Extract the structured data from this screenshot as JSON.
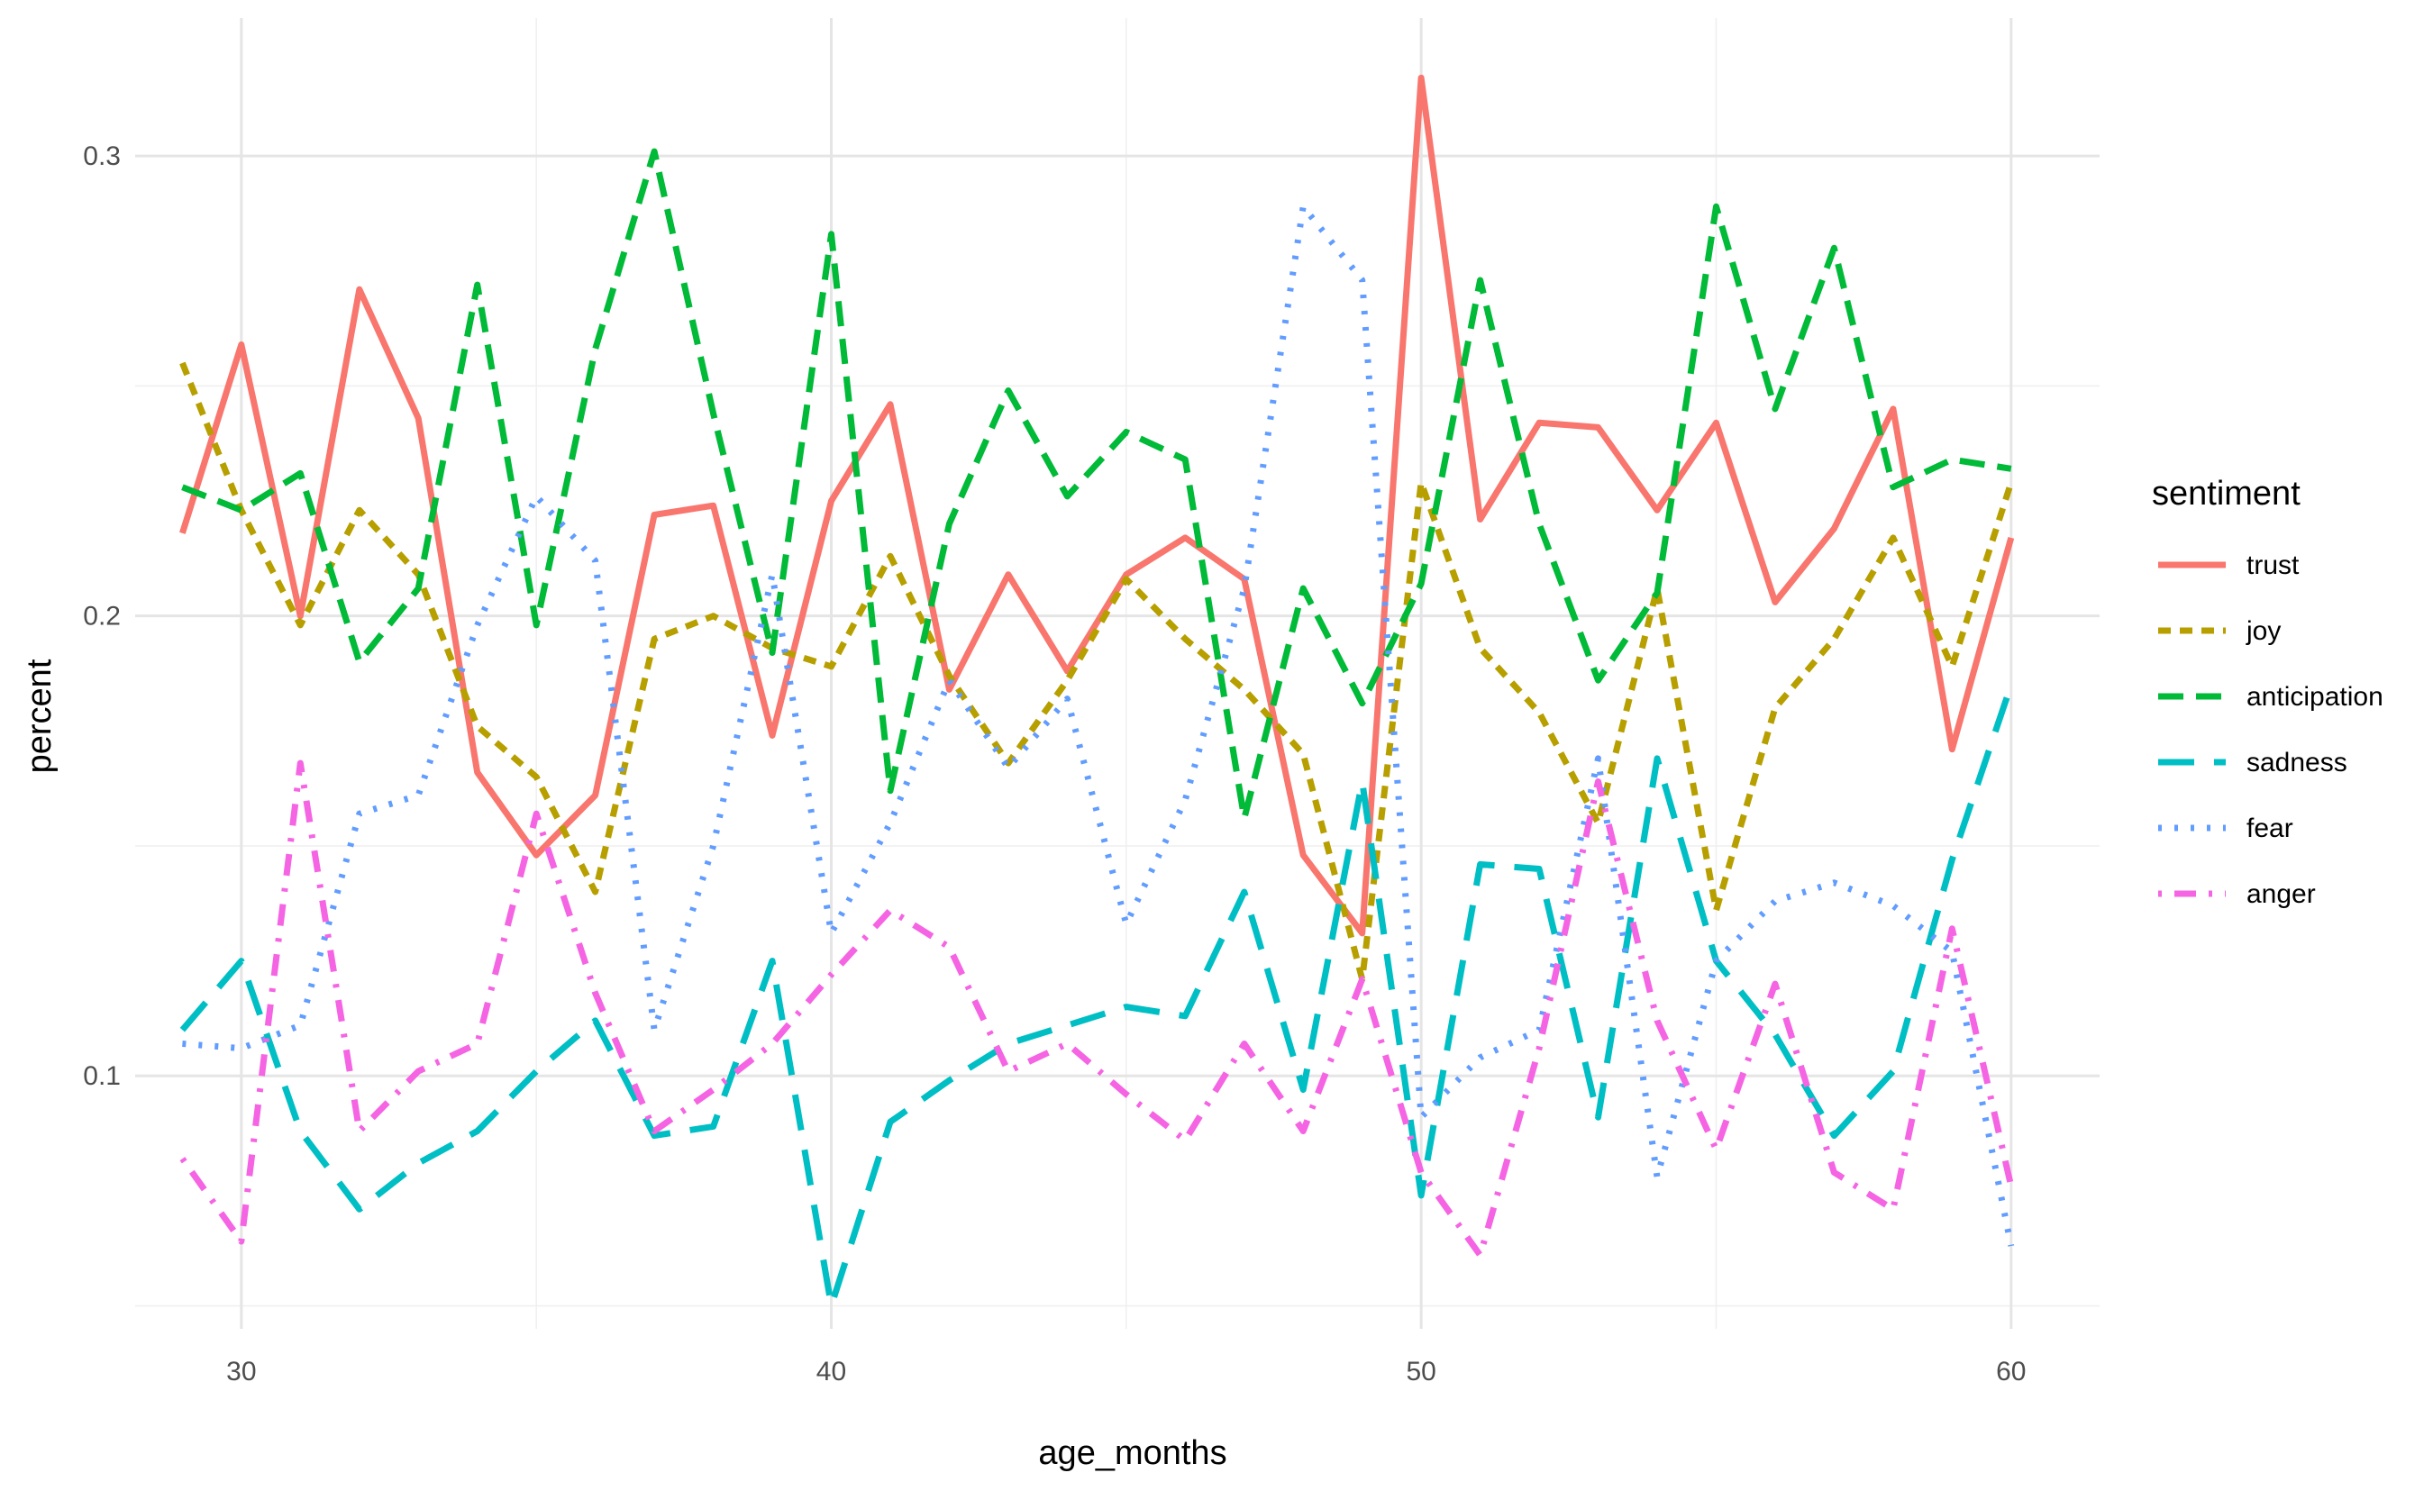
{
  "chart_data": {
    "type": "line",
    "title": "",
    "xlabel": "age_months",
    "ylabel": "percent",
    "xlim": [
      28.2,
      61.5
    ],
    "ylim": [
      0.045,
      0.33
    ],
    "x_major_ticks": [
      30,
      40,
      50,
      60
    ],
    "x_minor_ticks": [
      35,
      45,
      55
    ],
    "y_major_ticks": [
      0.1,
      0.2,
      0.3
    ],
    "y_major_labels": [
      "0.1",
      "0.2",
      "0.3"
    ],
    "y_minor_ticks": [
      0.05,
      0.15,
      0.25
    ],
    "grid": true,
    "legend": {
      "title": "sentiment",
      "position": "right"
    },
    "x": [
      29,
      30,
      31,
      32,
      33,
      34,
      35,
      36,
      37,
      38,
      39,
      40,
      41,
      42,
      43,
      44,
      45,
      46,
      47,
      48,
      49,
      50,
      51,
      52,
      53,
      54,
      55,
      56,
      57,
      58,
      59,
      60
    ],
    "series": [
      {
        "name": "trust",
        "color": "#F8766D",
        "dash": "solid",
        "values": [
          0.218,
          0.259,
          0.2,
          0.271,
          0.243,
          0.166,
          0.148,
          0.161,
          0.222,
          0.224,
          0.174,
          0.225,
          0.246,
          0.184,
          0.209,
          0.188,
          0.209,
          0.217,
          0.208,
          0.148,
          0.131,
          0.317,
          0.221,
          0.242,
          0.241,
          0.223,
          0.242,
          0.203,
          0.219,
          0.245,
          0.171,
          0.217
        ]
      },
      {
        "name": "joy",
        "color": "#B79F00",
        "dash": "dash-short",
        "values": [
          0.255,
          0.223,
          0.198,
          0.223,
          0.209,
          0.176,
          0.165,
          0.14,
          0.195,
          0.2,
          0.193,
          0.189,
          0.213,
          0.187,
          0.168,
          0.186,
          0.208,
          0.195,
          0.184,
          0.17,
          0.121,
          0.229,
          0.193,
          0.179,
          0.155,
          0.206,
          0.136,
          0.18,
          0.195,
          0.217,
          0.189,
          0.229
        ]
      },
      {
        "name": "anticipation",
        "color": "#00BA38",
        "dash": "dash-long",
        "values": [
          0.228,
          0.223,
          0.231,
          0.19,
          0.206,
          0.272,
          0.198,
          0.258,
          0.301,
          0.244,
          0.192,
          0.283,
          0.162,
          0.22,
          0.249,
          0.226,
          0.24,
          0.234,
          0.156,
          0.206,
          0.181,
          0.207,
          0.273,
          0.22,
          0.186,
          0.205,
          0.289,
          0.245,
          0.28,
          0.228,
          0.234,
          0.232
        ]
      },
      {
        "name": "sadness",
        "color": "#00BFC4",
        "dash": "longdash",
        "values": [
          0.11,
          0.125,
          0.088,
          0.071,
          0.081,
          0.088,
          0.101,
          0.112,
          0.087,
          0.089,
          0.125,
          0.05,
          0.09,
          0.099,
          0.107,
          0.111,
          0.115,
          0.113,
          0.14,
          0.097,
          0.164,
          0.074,
          0.146,
          0.145,
          0.091,
          0.169,
          0.125,
          0.109,
          0.087,
          0.101,
          0.147,
          0.185
        ]
      },
      {
        "name": "fear",
        "color": "#619CFF",
        "dash": "dotted",
        "values": [
          0.107,
          0.106,
          0.111,
          0.157,
          0.161,
          0.198,
          0.226,
          0.212,
          0.11,
          0.15,
          0.209,
          0.131,
          0.155,
          0.186,
          0.167,
          0.182,
          0.133,
          0.16,
          0.206,
          0.289,
          0.273,
          0.091,
          0.104,
          0.11,
          0.169,
          0.078,
          0.125,
          0.138,
          0.142,
          0.137,
          0.127,
          0.063
        ]
      },
      {
        "name": "anger",
        "color": "#F564E3",
        "dash": "dotdash",
        "values": [
          0.082,
          0.064,
          0.168,
          0.088,
          0.101,
          0.107,
          0.157,
          0.118,
          0.088,
          0.097,
          0.107,
          0.122,
          0.136,
          0.128,
          0.101,
          0.107,
          0.096,
          0.086,
          0.107,
          0.088,
          0.121,
          0.079,
          0.061,
          0.106,
          0.164,
          0.112,
          0.084,
          0.12,
          0.079,
          0.071,
          0.132,
          0.076
        ]
      }
    ]
  }
}
